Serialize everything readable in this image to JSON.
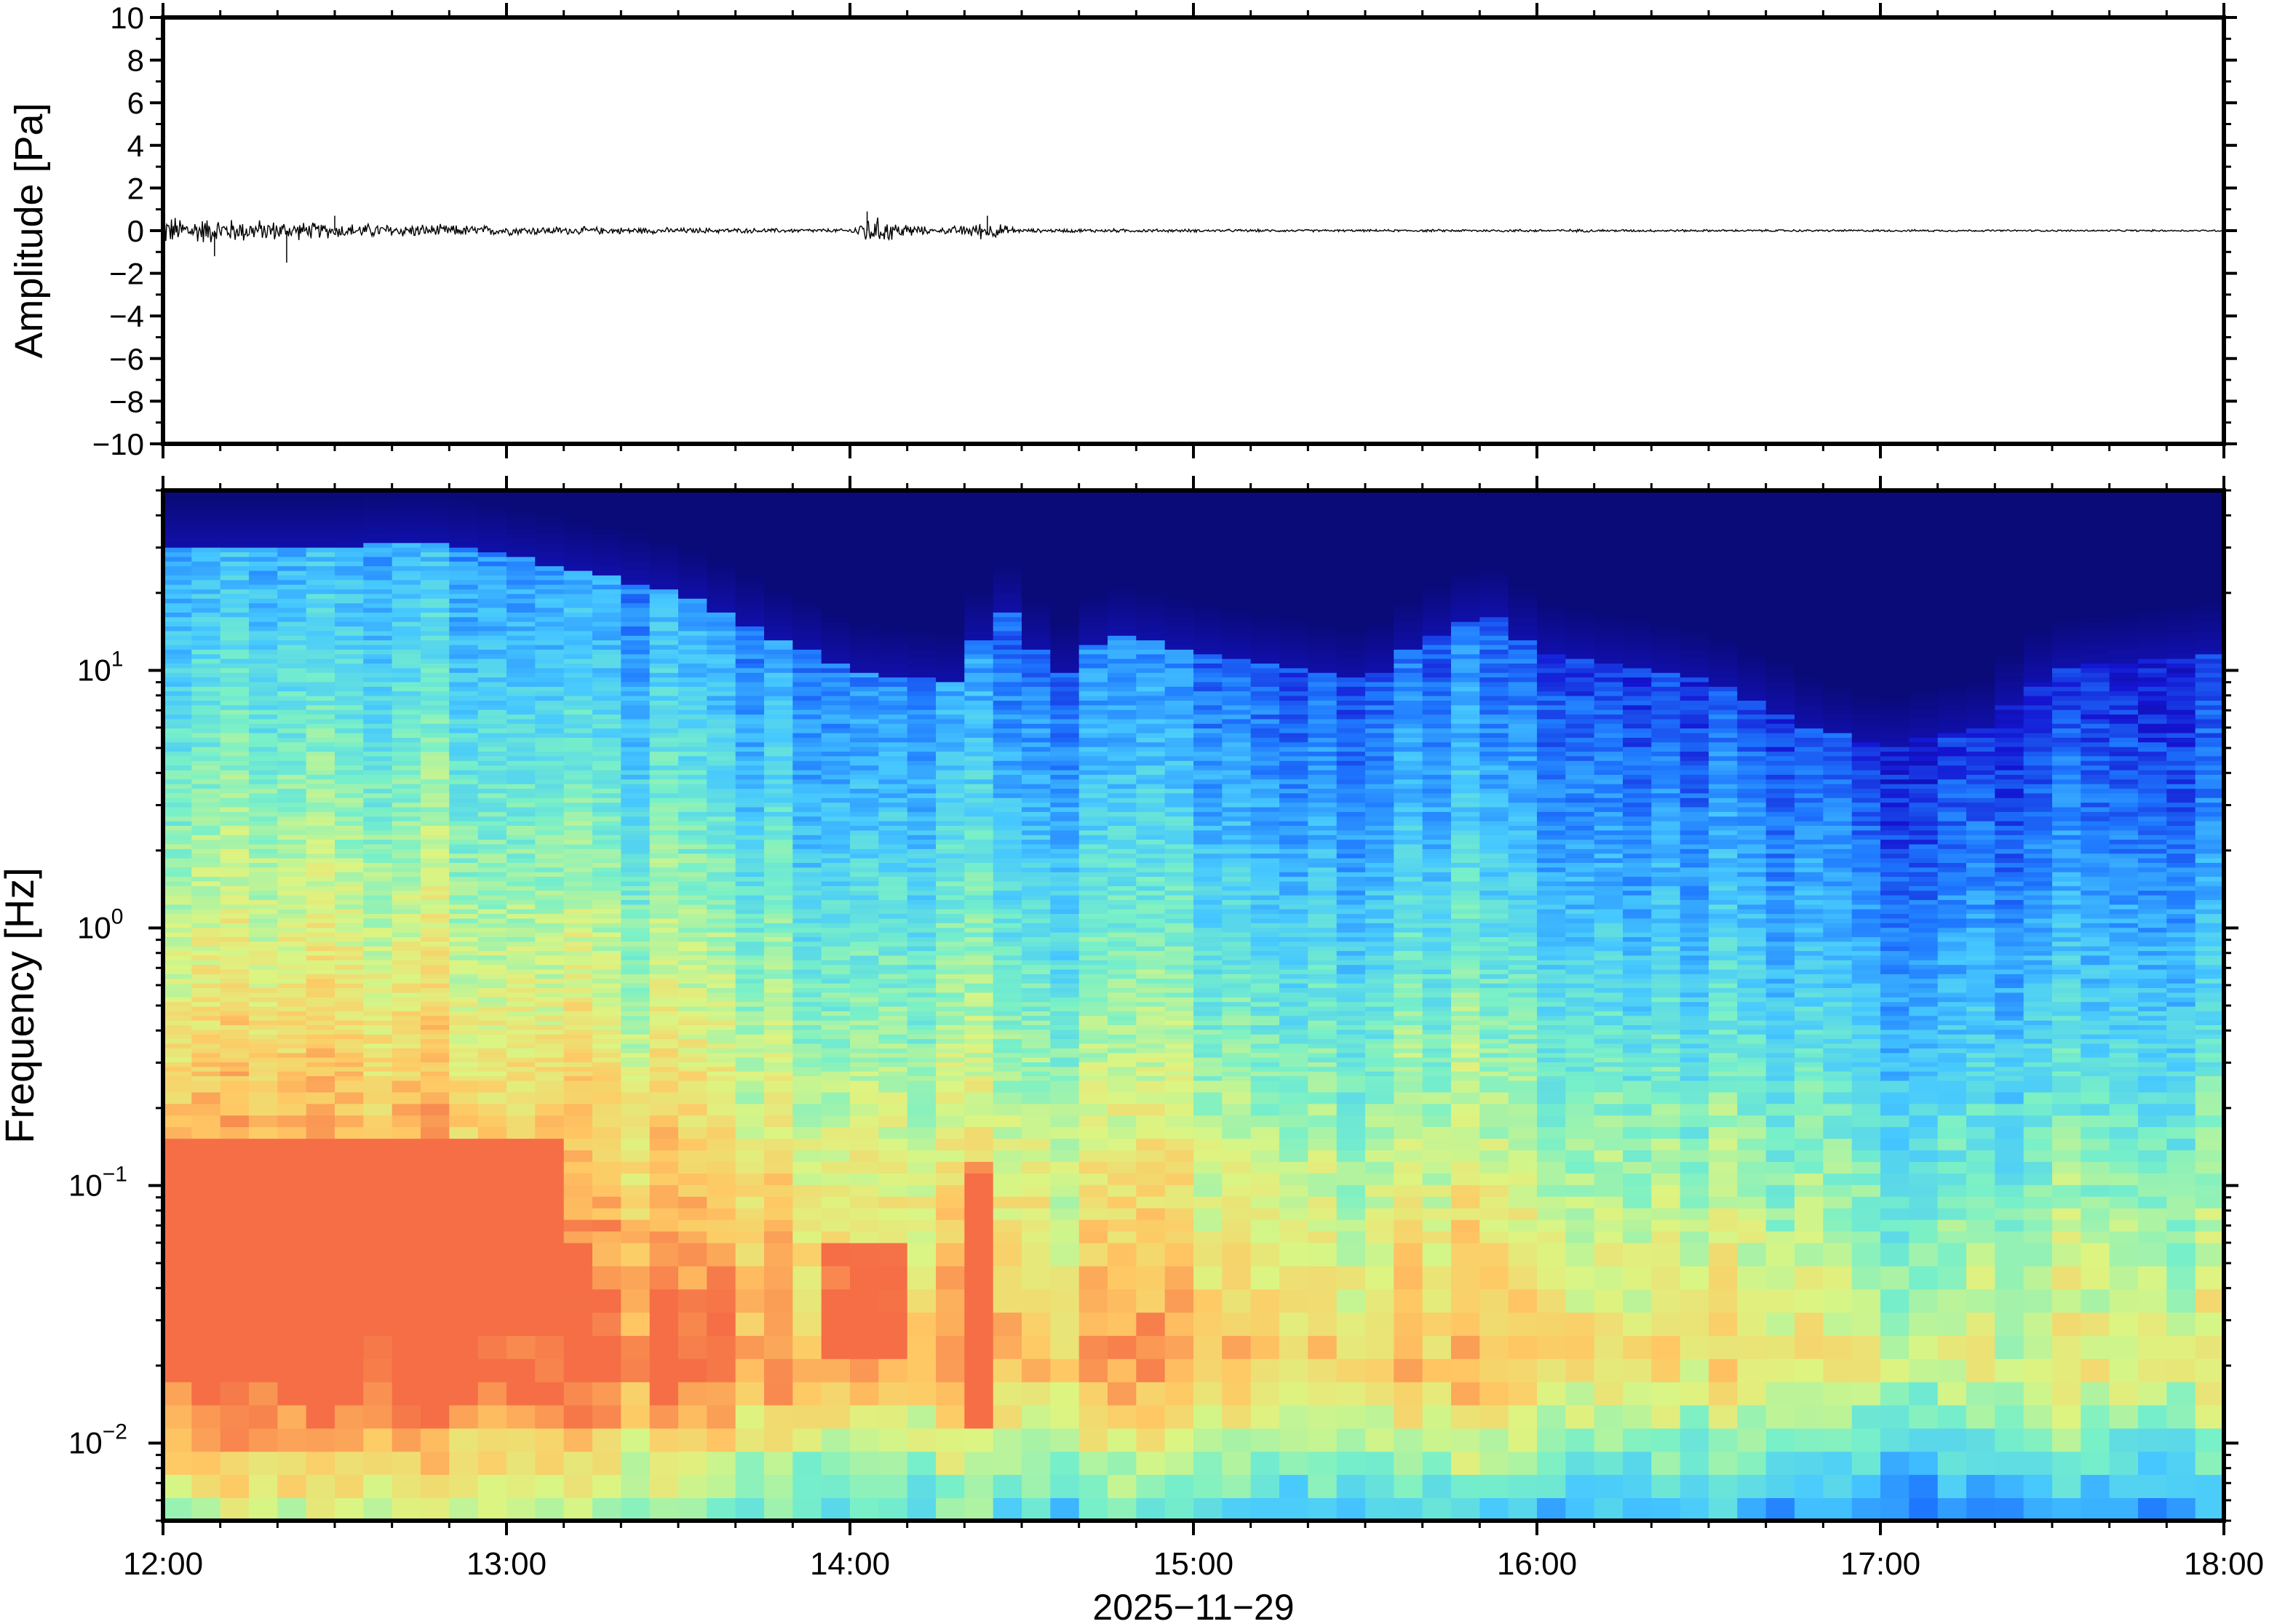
{
  "chart_data": [
    {
      "type": "line",
      "panel": "waveform",
      "ylabel": "Amplitude [Pa]",
      "ylim": [
        -10,
        10
      ],
      "yticks": [
        "10",
        "8",
        "6",
        "4",
        "2",
        "0",
        "−2",
        "−4",
        "−6",
        "−8",
        "−10"
      ],
      "ytick_values": [
        10,
        8,
        6,
        4,
        2,
        0,
        -2,
        -4,
        -6,
        -8,
        -10
      ],
      "xlim": [
        "12:00",
        "18:00"
      ],
      "grid": false,
      "series": [
        {
          "color": "#000000",
          "envelope": {
            "time_hours": [
              12.0,
              12.25,
              12.5,
              12.75,
              13.0,
              13.25,
              13.5,
              13.75,
              14.0,
              14.05,
              14.25,
              14.4,
              14.5,
              14.75,
              15.0,
              15.5,
              16.0,
              16.5,
              17.0,
              17.5,
              18.0
            ],
            "amplitude_pa": [
              0.8,
              0.6,
              0.4,
              0.35,
              0.25,
              0.2,
              0.15,
              0.12,
              0.1,
              0.8,
              0.1,
              0.5,
              0.1,
              0.1,
              0.08,
              0.06,
              0.08,
              0.06,
              0.06,
              0.05,
              0.05
            ]
          }
        }
      ]
    },
    {
      "type": "heatmap",
      "panel": "spectrogram",
      "ylabel": "Frequency [Hz]",
      "yscale": "log",
      "ylim_hz": [
        0.005,
        50
      ],
      "yticks": [
        {
          "base": "10",
          "exp": "1",
          "value": 10
        },
        {
          "base": "10",
          "exp": "0",
          "value": 1
        },
        {
          "base": "10",
          "exp": "−1",
          "value": 0.1
        },
        {
          "base": "10",
          "exp": "−2",
          "value": 0.01
        }
      ],
      "xlabel": "2025−11−29",
      "xticks": [
        "12:00",
        "13:00",
        "14:00",
        "15:00",
        "16:00",
        "17:00",
        "18:00"
      ],
      "xtick_hours": [
        12,
        13,
        14,
        15,
        16,
        17,
        18
      ],
      "colormap": "jet",
      "colormap_stops": [
        "#0a0a78",
        "#1414d2",
        "#1e78ff",
        "#46c8ff",
        "#78f0c8",
        "#dcf582",
        "#ffc864",
        "#f56e46"
      ],
      "high_frequency_cutoff_hz": {
        "time_hours": [
          12.0,
          12.5,
          12.75,
          13.0,
          13.5,
          13.75,
          14.0,
          14.3,
          14.45,
          14.6,
          14.75,
          15.0,
          15.5,
          15.85,
          16.0,
          16.5,
          16.8,
          17.0,
          17.3,
          17.5,
          18.0
        ],
        "freq_hz": [
          30,
          30,
          32,
          28,
          20,
          14,
          10,
          9,
          17,
          9,
          14,
          12,
          9,
          17,
          12,
          9,
          6,
          5,
          6,
          10,
          12
        ]
      },
      "strong_energy_bands": [
        {
          "t_start": 12.0,
          "t_end": 13.15,
          "f_low_hz": 0.03,
          "f_high_hz": 0.15
        },
        {
          "t_start": 13.9,
          "t_end": 14.15,
          "f_low_hz": 0.02,
          "f_high_hz": 0.06
        },
        {
          "t_start": 14.35,
          "t_end": 14.45,
          "f_low_hz": 0.012,
          "f_high_hz": 0.12
        }
      ]
    }
  ]
}
